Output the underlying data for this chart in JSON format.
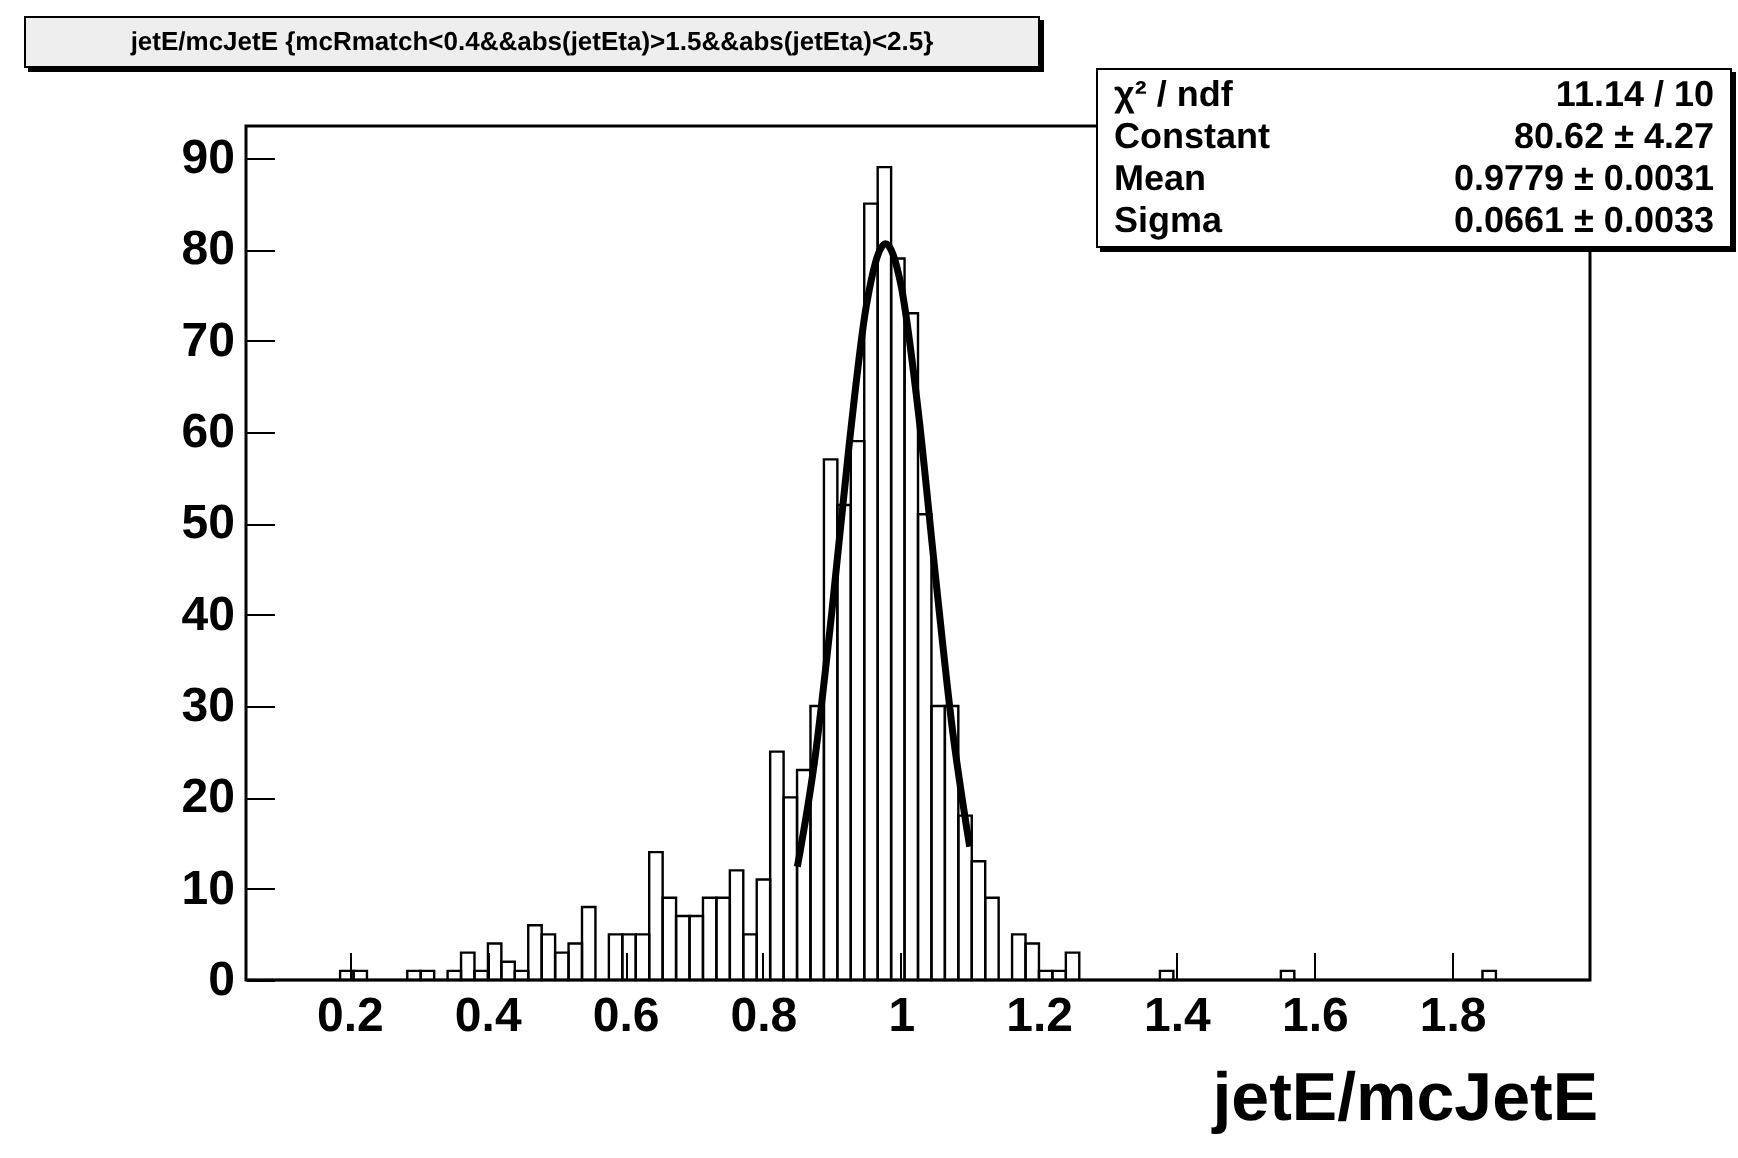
{
  "chart_data": {
    "type": "histogram",
    "title": "jetE/mcJetE {mcRmatch<0.4&&abs(jetEta)>1.5&&abs(jetEta)<2.5}",
    "xlabel": "jetE/mcJetE",
    "bins": [
      0.05,
      0.0695,
      0.089,
      0.1085,
      0.128,
      0.1475,
      0.167,
      0.1865,
      0.206,
      0.2255,
      0.245,
      0.2645,
      0.284,
      0.3035,
      0.323,
      0.3425,
      0.362,
      0.3815,
      0.401,
      0.4205,
      0.44,
      0.4595,
      0.479,
      0.4985,
      0.518,
      0.5375,
      0.557,
      0.5765,
      0.596,
      0.6155,
      0.635,
      0.6545,
      0.674,
      0.6935,
      0.713,
      0.7325,
      0.752,
      0.7715,
      0.791,
      0.8105,
      0.83,
      0.8495,
      0.869,
      0.8885,
      0.908,
      0.9275,
      0.947,
      0.9665,
      0.986,
      1.0055,
      1.025,
      1.0445,
      1.064,
      1.0835,
      1.103,
      1.1225,
      1.142,
      1.1615,
      1.181,
      1.2005,
      1.22,
      1.2395,
      1.259,
      1.2785,
      1.298,
      1.3175,
      1.337,
      1.3565,
      1.376,
      1.3955,
      1.415,
      1.4345,
      1.454,
      1.4735,
      1.493,
      1.5125,
      1.532,
      1.5515,
      1.571,
      1.5905,
      1.61,
      1.6295,
      1.649,
      1.6685,
      1.688,
      1.7075,
      1.727,
      1.7465,
      1.766,
      1.7855,
      1.805,
      1.8245,
      1.844,
      1.8635,
      1.883,
      1.9025,
      1.922,
      1.9415,
      1.961,
      1.9805,
      2.0
    ],
    "values": [
      0,
      0,
      0,
      0,
      0,
      0,
      0,
      1,
      1,
      0,
      0,
      0,
      1,
      1,
      0,
      1,
      3,
      1,
      4,
      2,
      1,
      6,
      5,
      3,
      4,
      8,
      0,
      5,
      5,
      5,
      14,
      9,
      7,
      7,
      9,
      9,
      12,
      5,
      11,
      25,
      20,
      23,
      30,
      57,
      52,
      59,
      85,
      89,
      79,
      73,
      51,
      30,
      30,
      18,
      13,
      9,
      0,
      5,
      4,
      1,
      1,
      3,
      0,
      0,
      0,
      0,
      0,
      0,
      1,
      0,
      0,
      0,
      0,
      0,
      0,
      0,
      0,
      1,
      0,
      0,
      0,
      0,
      0,
      0,
      0,
      0,
      0,
      0,
      0,
      0,
      0,
      0,
      1,
      0,
      0,
      0,
      0,
      0,
      0,
      0
    ],
    "color": "#000000",
    "series": [
      {
        "type": "line",
        "color": "#000000",
        "x": [
          0.85,
          0.875,
          0.9,
          0.925,
          0.95,
          0.9779,
          1.0,
          1.025,
          1.05,
          1.075,
          1.1
        ],
        "values": [
          12.4,
          24.0,
          40.3,
          58.5,
          73.8,
          80.6,
          76.2,
          62.5,
          44.5,
          27.4,
          14.6
        ]
      }
    ],
    "xlim": [
      0.05,
      2.0
    ],
    "ylim": [
      0,
      93.5
    ],
    "xticks": [
      0.2,
      0.4,
      0.6,
      0.8,
      1,
      1.2,
      1.4,
      1.6,
      1.8
    ],
    "yticks": [
      0,
      10,
      20,
      30,
      40,
      50,
      60,
      70,
      80,
      90
    ],
    "annotations": [
      "χ² / ndf",
      "11.14 / 10",
      "Constant",
      "80.62 ± 4.27",
      "Mean",
      "0.9779 ± 0.0031",
      "Sigma",
      "0.0661 ± 0.0033"
    ]
  }
}
